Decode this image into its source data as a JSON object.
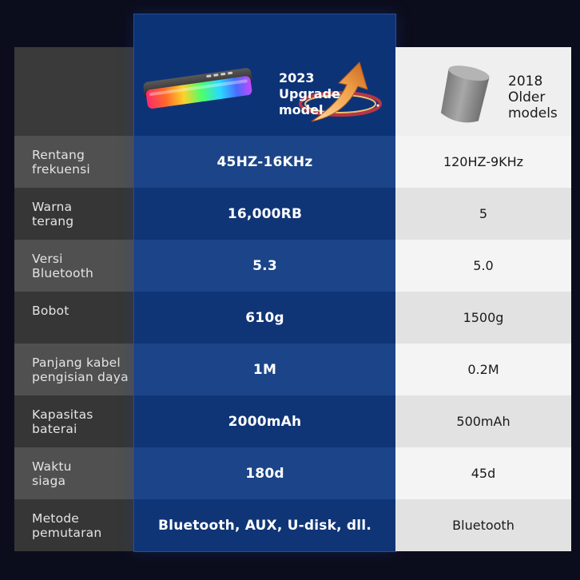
{
  "header": {
    "new_model": {
      "year": "2023",
      "line1": "Upgrade",
      "line2": "model"
    },
    "old_model": {
      "year": "2018",
      "line1": "Older",
      "line2": "models"
    }
  },
  "rows": [
    {
      "label_lines": [
        "Rentang",
        "frekuensi"
      ],
      "new": "45HZ-16KHz",
      "old": "120HZ-9KHz"
    },
    {
      "label_lines": [
        "Warna",
        "terang"
      ],
      "new": "16,000RB",
      "old": "5"
    },
    {
      "label_lines": [
        "Versi",
        "Bluetooth"
      ],
      "new": "5.3",
      "old": "5.0"
    },
    {
      "label_lines": [
        "Bobot"
      ],
      "new": "610g",
      "old": "1500g"
    },
    {
      "label_lines": [
        "Panjang kabel",
        "pengisian daya"
      ],
      "new": "1M",
      "old": "0.2M"
    },
    {
      "label_lines": [
        "Kapasitas",
        "baterai"
      ],
      "new": "2000mAh",
      "old": "500mAh"
    },
    {
      "label_lines": [
        "Waktu",
        "siaga"
      ],
      "new": "180d",
      "old": "45d"
    },
    {
      "label_lines": [
        "Metode",
        "pemutaran"
      ],
      "new": "Bluetooth, AUX, U-disk, dll.",
      "old": "Bluetooth"
    }
  ],
  "colors": {
    "background": "#0c0d1c",
    "highlight_column": "#0d3377",
    "arrow": "#f0a04a"
  },
  "icons": {
    "new_product": "rgb-soundbar-image",
    "old_product": "cylinder-speaker-image",
    "arrow": "upgrade-arrow-icon"
  }
}
